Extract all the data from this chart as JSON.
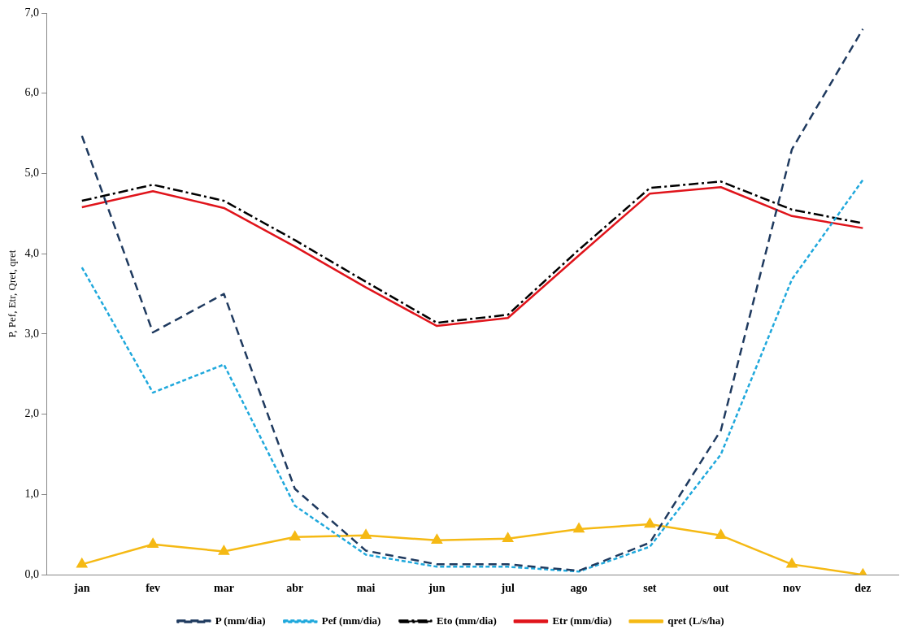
{
  "chart_data": {
    "type": "line",
    "ylabel": "P, Pef, Etr, Qret, qret",
    "categories": [
      "jan",
      "fev",
      "mar",
      "abr",
      "mai",
      "jun",
      "jul",
      "ago",
      "set",
      "out",
      "nov",
      "dez"
    ],
    "series": [
      {
        "name": "P (mm/dia)",
        "color": "#1f3a5f",
        "line_style": "dashed",
        "marker": "none",
        "values": [
          5.47,
          3.02,
          3.5,
          1.07,
          0.3,
          0.13,
          0.13,
          0.05,
          0.4,
          1.8,
          5.3,
          6.8
        ]
      },
      {
        "name": "Pef (mm/dia)",
        "color": "#1fa8dc",
        "line_style": "dotted",
        "marker": "none",
        "values": [
          3.83,
          2.27,
          2.62,
          0.86,
          0.25,
          0.1,
          0.1,
          0.04,
          0.35,
          1.5,
          3.68,
          4.92
        ]
      },
      {
        "name": "Eto (mm/dia)",
        "color": "#000000",
        "line_style": "dashdot",
        "marker": "none",
        "values": [
          4.66,
          4.86,
          4.66,
          4.17,
          3.65,
          3.14,
          3.24,
          4.05,
          4.82,
          4.9,
          4.55,
          4.38
        ]
      },
      {
        "name": "Etr (mm/dia)",
        "color": "#e0141b",
        "line_style": "solid",
        "marker": "none",
        "values": [
          4.58,
          4.78,
          4.57,
          4.09,
          3.58,
          3.1,
          3.2,
          3.98,
          4.75,
          4.83,
          4.47,
          4.32
        ]
      },
      {
        "name": "qret (L/s/ha)",
        "color": "#f5b914",
        "line_style": "solid",
        "marker": "triangle",
        "values": [
          0.13,
          0.38,
          0.29,
          0.47,
          0.49,
          0.43,
          0.45,
          0.57,
          0.63,
          0.49,
          0.13,
          0.0
        ]
      }
    ],
    "ylim": [
      0,
      7
    ],
    "yticks": [
      {
        "value": 0,
        "label": "0,0"
      },
      {
        "value": 1,
        "label": "1,0"
      },
      {
        "value": 2,
        "label": "2,0"
      },
      {
        "value": 3,
        "label": "3,0"
      },
      {
        "value": 4,
        "label": "4,0"
      },
      {
        "value": 5,
        "label": "5,0"
      },
      {
        "value": 6,
        "label": "6,0"
      },
      {
        "value": 7,
        "label": "7,0"
      }
    ],
    "grid": false,
    "legend": "bottom"
  }
}
